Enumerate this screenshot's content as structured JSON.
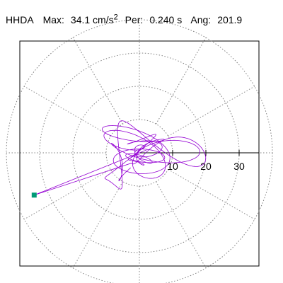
{
  "header": {
    "component": "HHDA",
    "max_label": "Max:",
    "max_value": "34.1 cm/s",
    "max_exp": "2",
    "per_label": "Per:",
    "per_value": "0.240 s",
    "ang_label": "Ang:",
    "ang_value": "201.9"
  },
  "chart_data": {
    "type": "polar-orbit",
    "title": "HHDA  Max: 34.1 cm/s2  Per: 0.240 s  Ang: 201.9",
    "radial_ticks": [
      10,
      20,
      30
    ],
    "radial_tick_labels": [
      "10",
      "20",
      "30"
    ],
    "r_max": 40,
    "spoke_angles_deg": [
      0,
      30,
      60,
      90,
      120,
      150,
      180,
      210,
      240,
      270,
      300,
      330
    ],
    "grid": "dotted",
    "max_point": {
      "magnitude": 34.1,
      "angle_deg": 201.9
    },
    "colors": {
      "trace": "#9400d3",
      "marker": "#009b77",
      "grid": "#808080",
      "axis": "#000000"
    }
  }
}
